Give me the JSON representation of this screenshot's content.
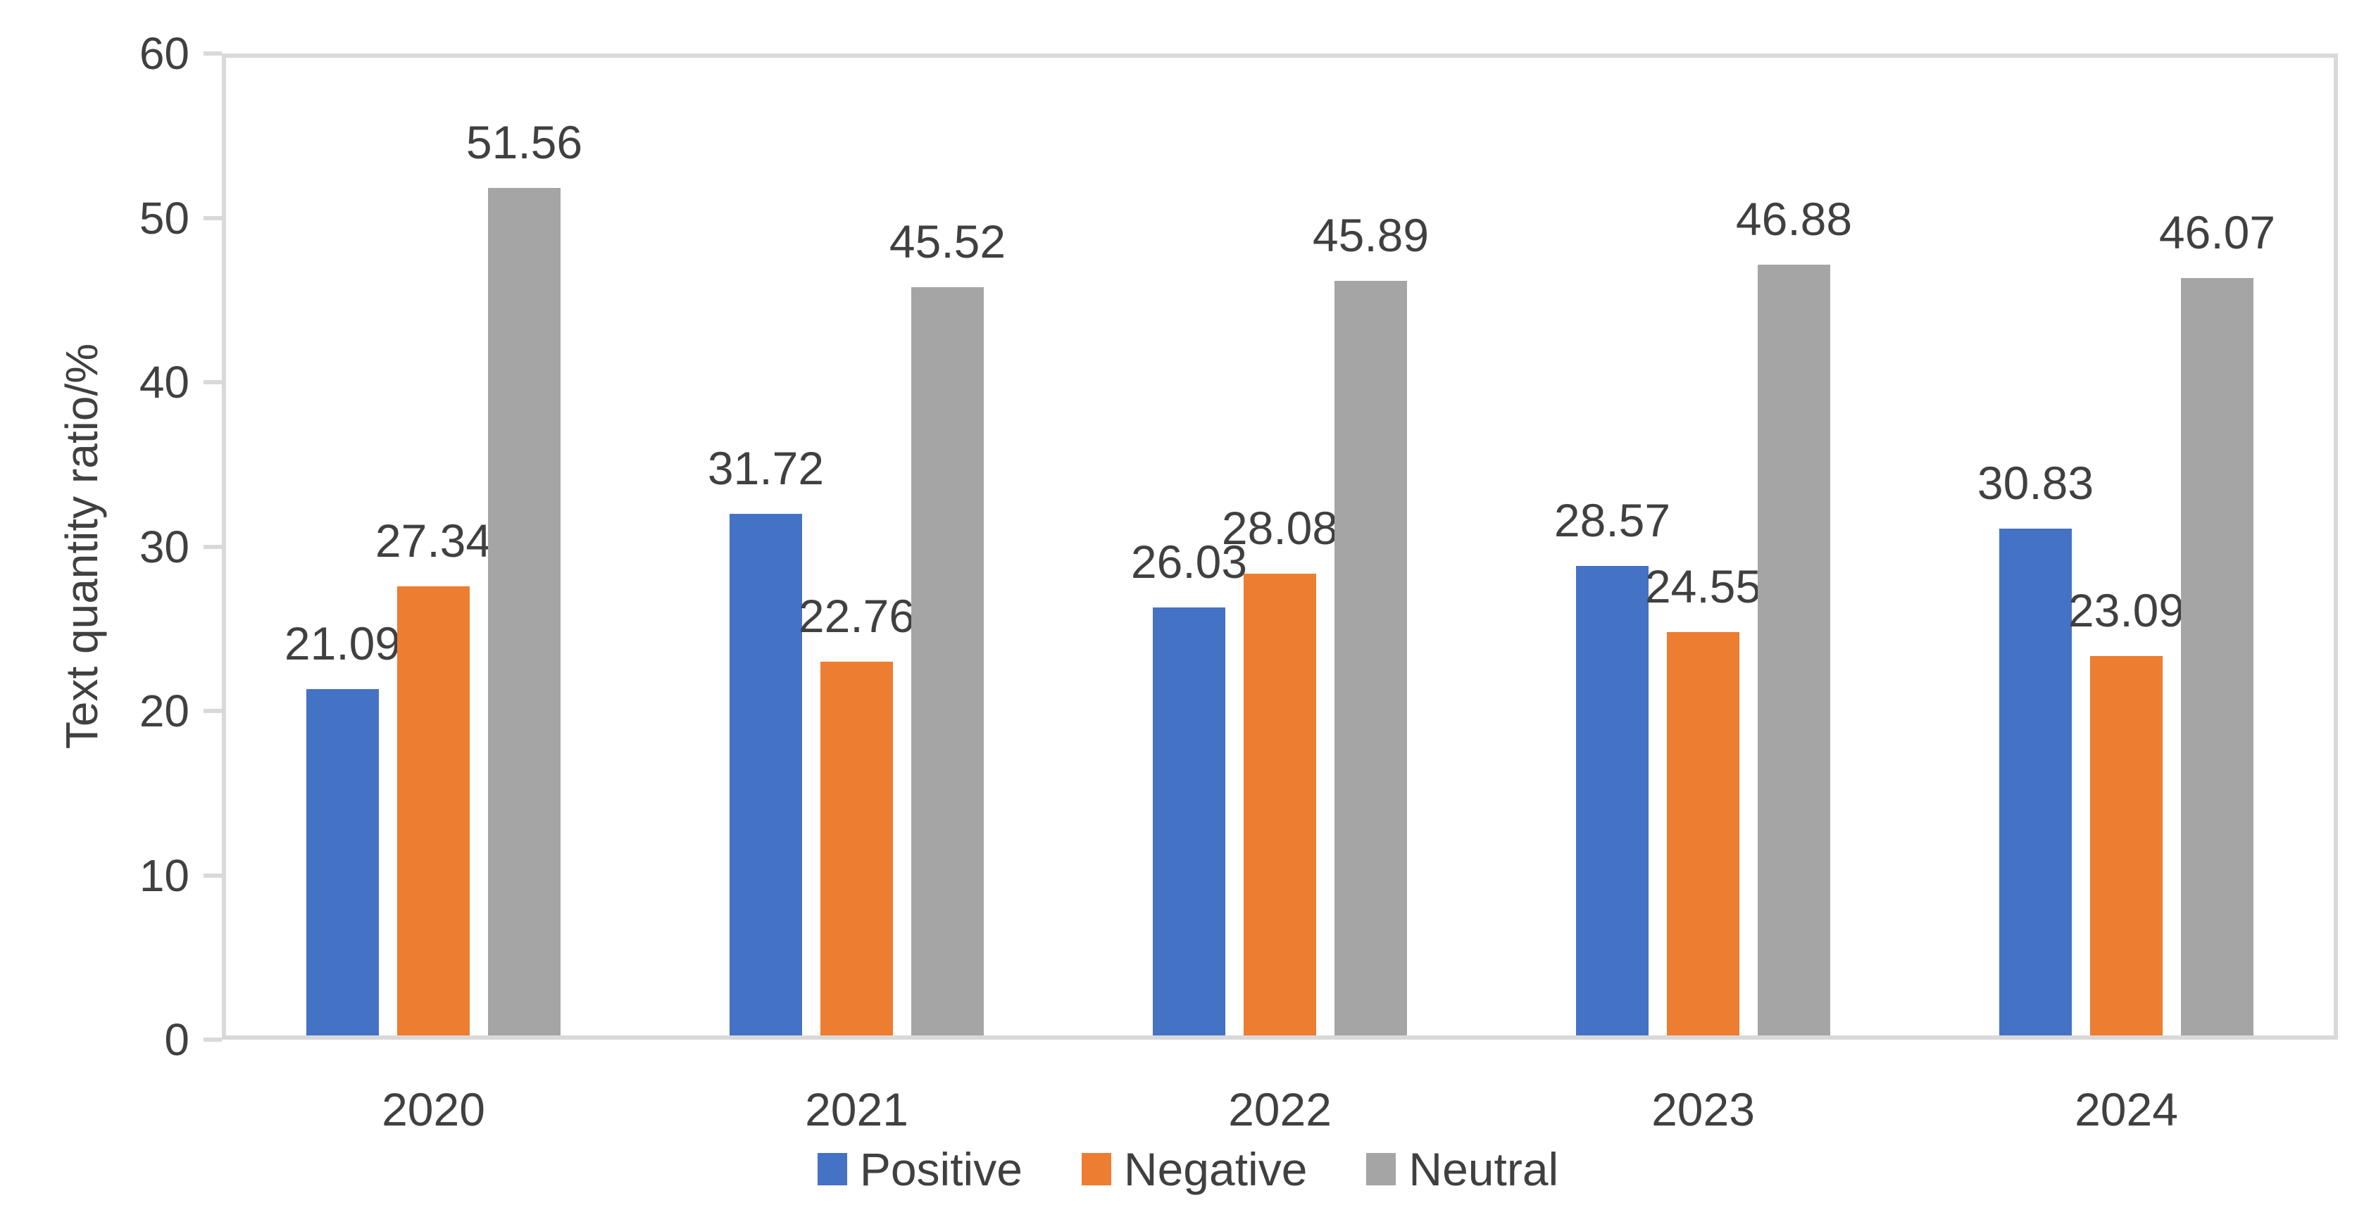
{
  "chart_data": {
    "type": "bar",
    "title": "",
    "categories": [
      "2020",
      "2021",
      "2022",
      "2023",
      "2024"
    ],
    "series": [
      {
        "name": "Positive",
        "color": "#4472C4",
        "values": [
          21.09,
          31.72,
          26.03,
          28.57,
          30.83
        ]
      },
      {
        "name": "Negative",
        "color": "#ED7D31",
        "values": [
          27.34,
          22.76,
          28.08,
          24.55,
          23.09
        ]
      },
      {
        "name": "Neutral",
        "color": "#A5A5A5",
        "values": [
          51.56,
          45.52,
          45.89,
          46.88,
          46.07
        ]
      }
    ],
    "xlabel": "",
    "ylabel": "Text quantity ratio/%",
    "ylim": [
      0,
      60
    ],
    "ytick_interval": 10,
    "y_tick_labels": [
      "0",
      "10",
      "20",
      "30",
      "40",
      "50",
      "60"
    ],
    "grid": false,
    "data_labels": true,
    "data_label_decimals": 2,
    "legend_position": "bottom",
    "axis_color": "#D9D9D9",
    "text_color": "#404040"
  }
}
